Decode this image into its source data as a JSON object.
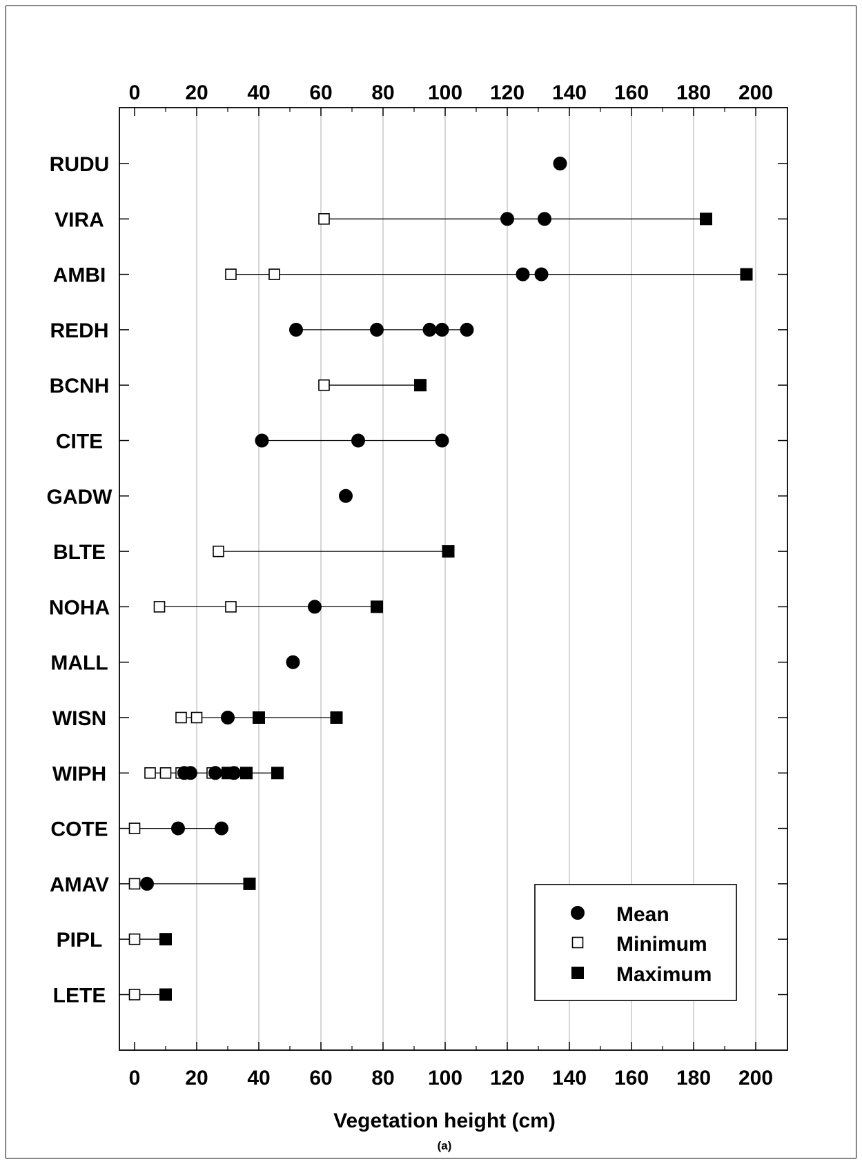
{
  "chart_data": {
    "type": "scatter",
    "title": "",
    "xlabel": "Vegetation height (cm)",
    "panel_label": "(a)",
    "xlim": [
      -5,
      210
    ],
    "xticks": [
      0,
      20,
      40,
      60,
      80,
      100,
      120,
      140,
      160,
      180,
      200
    ],
    "tick_labels": [
      "0",
      "20",
      "40",
      "60",
      "80",
      "100",
      "120",
      "140",
      "160",
      "180",
      "200"
    ],
    "grid": true,
    "legend_position": "bottom-right",
    "categories": [
      "RUDU",
      "VIRA",
      "AMBI",
      "REDH",
      "BCNH",
      "CITE",
      "GADW",
      "BLTE",
      "NOHA",
      "MALL",
      "WISN",
      "WIPH",
      "COTE",
      "AMAV",
      "PIPL",
      "LETE"
    ],
    "series": [
      {
        "name": "Mean",
        "marker": "filled-circle",
        "points": [
          {
            "category": "RUDU",
            "values": [
              137
            ]
          },
          {
            "category": "VIRA",
            "values": [
              120,
              132
            ]
          },
          {
            "category": "AMBI",
            "values": [
              125,
              131
            ]
          },
          {
            "category": "REDH",
            "values": [
              52,
              78,
              95,
              99,
              107
            ]
          },
          {
            "category": "BCNH",
            "values": []
          },
          {
            "category": "CITE",
            "values": [
              41,
              72,
              99
            ]
          },
          {
            "category": "GADW",
            "values": [
              68
            ]
          },
          {
            "category": "BLTE",
            "values": []
          },
          {
            "category": "NOHA",
            "values": [
              58
            ]
          },
          {
            "category": "MALL",
            "values": [
              51
            ]
          },
          {
            "category": "WISN",
            "values": [
              30
            ]
          },
          {
            "category": "WIPH",
            "values": [
              16,
              18,
              26,
              32
            ]
          },
          {
            "category": "COTE",
            "values": [
              14,
              28
            ]
          },
          {
            "category": "AMAV",
            "values": [
              4
            ]
          },
          {
            "category": "PIPL",
            "values": []
          },
          {
            "category": "LETE",
            "values": []
          }
        ]
      },
      {
        "name": "Minimum",
        "marker": "open-square",
        "points": [
          {
            "category": "RUDU",
            "values": []
          },
          {
            "category": "VIRA",
            "values": [
              61
            ]
          },
          {
            "category": "AMBI",
            "values": [
              31,
              45
            ]
          },
          {
            "category": "REDH",
            "values": []
          },
          {
            "category": "BCNH",
            "values": [
              61
            ]
          },
          {
            "category": "CITE",
            "values": []
          },
          {
            "category": "GADW",
            "values": []
          },
          {
            "category": "BLTE",
            "values": [
              27
            ]
          },
          {
            "category": "NOHA",
            "values": [
              8,
              31
            ]
          },
          {
            "category": "MALL",
            "values": []
          },
          {
            "category": "WISN",
            "values": [
              15,
              20
            ]
          },
          {
            "category": "WIPH",
            "values": [
              5,
              10,
              15,
              25
            ]
          },
          {
            "category": "COTE",
            "values": [
              0
            ]
          },
          {
            "category": "AMAV",
            "values": [
              0
            ]
          },
          {
            "category": "PIPL",
            "values": [
              0
            ]
          },
          {
            "category": "LETE",
            "values": [
              0
            ]
          }
        ]
      },
      {
        "name": "Maximum",
        "marker": "filled-square",
        "points": [
          {
            "category": "RUDU",
            "values": []
          },
          {
            "category": "VIRA",
            "values": [
              184
            ]
          },
          {
            "category": "AMBI",
            "values": [
              197
            ]
          },
          {
            "category": "REDH",
            "values": []
          },
          {
            "category": "BCNH",
            "values": [
              92
            ]
          },
          {
            "category": "CITE",
            "values": []
          },
          {
            "category": "GADW",
            "values": []
          },
          {
            "category": "BLTE",
            "values": [
              101
            ]
          },
          {
            "category": "NOHA",
            "values": [
              78
            ]
          },
          {
            "category": "MALL",
            "values": []
          },
          {
            "category": "WISN",
            "values": [
              40,
              65
            ]
          },
          {
            "category": "WIPH",
            "values": [
              30,
              36,
              46
            ]
          },
          {
            "category": "COTE",
            "values": []
          },
          {
            "category": "AMAV",
            "values": [
              37
            ]
          },
          {
            "category": "PIPL",
            "values": [
              10
            ]
          },
          {
            "category": "LETE",
            "values": [
              10
            ]
          }
        ]
      }
    ],
    "ranges": [
      {
        "category": "VIRA",
        "from": 61,
        "to": 184
      },
      {
        "category": "AMBI",
        "from": 31,
        "to": 197
      },
      {
        "category": "REDH",
        "from": 52,
        "to": 107
      },
      {
        "category": "BCNH",
        "from": 61,
        "to": 92
      },
      {
        "category": "CITE",
        "from": 41,
        "to": 99
      },
      {
        "category": "BLTE",
        "from": 27,
        "to": 101
      },
      {
        "category": "NOHA",
        "from": 8,
        "to": 78
      },
      {
        "category": "WISN",
        "from": 15,
        "to": 65
      },
      {
        "category": "WIPH",
        "from": 5,
        "to": 46
      },
      {
        "category": "COTE",
        "from": 0,
        "to": 28
      },
      {
        "category": "AMAV",
        "from": 0,
        "to": 37
      },
      {
        "category": "PIPL",
        "from": 0,
        "to": 10
      },
      {
        "category": "LETE",
        "from": 0,
        "to": 10
      }
    ],
    "colors": {
      "marker": "#000000",
      "gridline": "#bbbbbb",
      "axis": "#000000",
      "open_fill": "#ffffff"
    }
  }
}
